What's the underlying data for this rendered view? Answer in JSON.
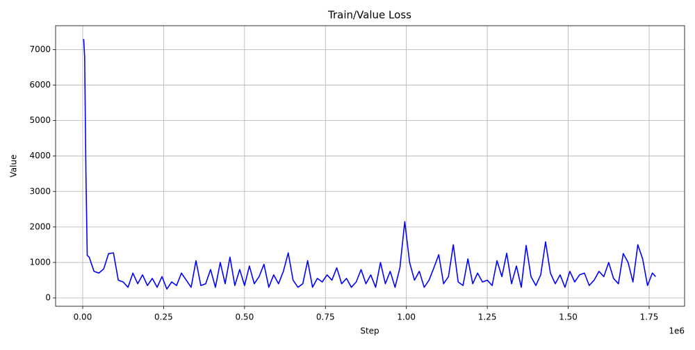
{
  "chart_data": {
    "type": "line",
    "title": "Train/Value Loss",
    "xlabel": "Step",
    "ylabel": "Value",
    "x_offset_text": "1e6",
    "color": "#0000ff",
    "grid": true,
    "xlim": [
      -83700,
      1859500
    ],
    "ylim": [
      -235,
      7675
    ],
    "xticks": [
      {
        "value": 0,
        "label": "0.00"
      },
      {
        "value": 250000,
        "label": "0.25"
      },
      {
        "value": 500000,
        "label": "0.50"
      },
      {
        "value": 750000,
        "label": "0.75"
      },
      {
        "value": 1000000,
        "label": "1.00"
      },
      {
        "value": 1250000,
        "label": "1.25"
      },
      {
        "value": 1500000,
        "label": "1.50"
      },
      {
        "value": 1750000,
        "label": "1.75"
      }
    ],
    "yticks": [
      0,
      1000,
      2000,
      3000,
      4000,
      5000,
      6000,
      7000
    ],
    "x": [
      3000,
      6000,
      10000,
      14000,
      20000,
      35000,
      50000,
      65000,
      80000,
      95000,
      110000,
      125000,
      140000,
      155000,
      170000,
      185000,
      200000,
      215000,
      230000,
      245000,
      260000,
      275000,
      290000,
      305000,
      320000,
      335000,
      350000,
      365000,
      380000,
      395000,
      410000,
      425000,
      440000,
      455000,
      470000,
      485000,
      500000,
      515000,
      530000,
      545000,
      560000,
      575000,
      590000,
      605000,
      620000,
      635000,
      650000,
      665000,
      680000,
      695000,
      710000,
      725000,
      740000,
      755000,
      770000,
      785000,
      800000,
      815000,
      830000,
      845000,
      860000,
      875000,
      890000,
      905000,
      920000,
      935000,
      950000,
      965000,
      980000,
      995000,
      1010000,
      1025000,
      1040000,
      1055000,
      1070000,
      1085000,
      1100000,
      1115000,
      1130000,
      1145000,
      1160000,
      1175000,
      1190000,
      1205000,
      1220000,
      1235000,
      1250000,
      1265000,
      1280000,
      1295000,
      1310000,
      1325000,
      1340000,
      1355000,
      1370000,
      1385000,
      1400000,
      1415000,
      1430000,
      1445000,
      1460000,
      1475000,
      1490000,
      1505000,
      1520000,
      1535000,
      1550000,
      1565000,
      1580000,
      1595000,
      1610000,
      1625000,
      1640000,
      1655000,
      1670000,
      1685000,
      1700000,
      1715000,
      1730000,
      1745000,
      1760000,
      1770000
    ],
    "values": [
      7300,
      6800,
      3500,
      1200,
      1150,
      750,
      700,
      820,
      1250,
      1270,
      500,
      450,
      300,
      700,
      400,
      650,
      350,
      550,
      300,
      600,
      250,
      450,
      350,
      700,
      500,
      300,
      1050,
      350,
      400,
      800,
      300,
      1000,
      400,
      1150,
      350,
      800,
      350,
      900,
      400,
      600,
      950,
      300,
      650,
      400,
      750,
      1270,
      500,
      300,
      400,
      1050,
      300,
      550,
      450,
      650,
      500,
      850,
      400,
      550,
      300,
      450,
      800,
      400,
      650,
      300,
      1000,
      400,
      750,
      300,
      850,
      2150,
      1000,
      500,
      750,
      300,
      500,
      850,
      1220,
      400,
      600,
      1500,
      450,
      350,
      1100,
      400,
      700,
      450,
      500,
      350,
      1050,
      600,
      1260,
      400,
      900,
      300,
      1480,
      600,
      350,
      650,
      1580,
      700,
      400,
      650,
      300,
      750,
      450,
      650,
      700,
      350,
      500,
      750,
      600,
      1000,
      550,
      400,
      1250,
      1000,
      450,
      1500,
      1100,
      350,
      700,
      600
    ]
  }
}
